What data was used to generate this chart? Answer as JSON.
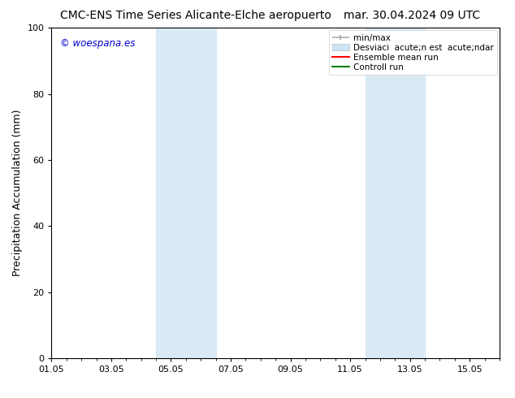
{
  "title_left": "CMC-ENS Time Series Alicante-Elche aeropuerto",
  "title_right": "mar. 30.04.2024 09 UTC",
  "ylabel": "Precipitation Accumulation (mm)",
  "ylim": [
    0,
    100
  ],
  "yticks": [
    0,
    20,
    40,
    60,
    80,
    100
  ],
  "xtick_labels": [
    "01.05",
    "03.05",
    "05.05",
    "07.05",
    "09.05",
    "11.05",
    "13.05",
    "15.05"
  ],
  "xtick_positions": [
    0,
    2,
    4,
    6,
    8,
    10,
    12,
    14
  ],
  "xlim": [
    0,
    15
  ],
  "shaded_regions": [
    {
      "x_start": 3.5,
      "x_end": 5.5,
      "color": "#daeaf5"
    },
    {
      "x_start": 10.5,
      "x_end": 12.5,
      "color": "#daeaf5"
    }
  ],
  "minmax_color": "#aaaaaa",
  "std_color": "#cce4f5",
  "ensemble_mean_color": "#ff0000",
  "control_color": "#008000",
  "watermark_text": "© woespana.es",
  "watermark_color": "#0000cc",
  "background_color": "#ffffff",
  "title_fontsize": 10,
  "axis_label_fontsize": 9,
  "tick_fontsize": 8,
  "legend_fontsize": 7.5,
  "legend_label_1": "min/max",
  "legend_label_2": "Desviaci  acute;n est  acute;ndar",
  "legend_label_3": "Ensemble mean run",
  "legend_label_4": "Controll run"
}
